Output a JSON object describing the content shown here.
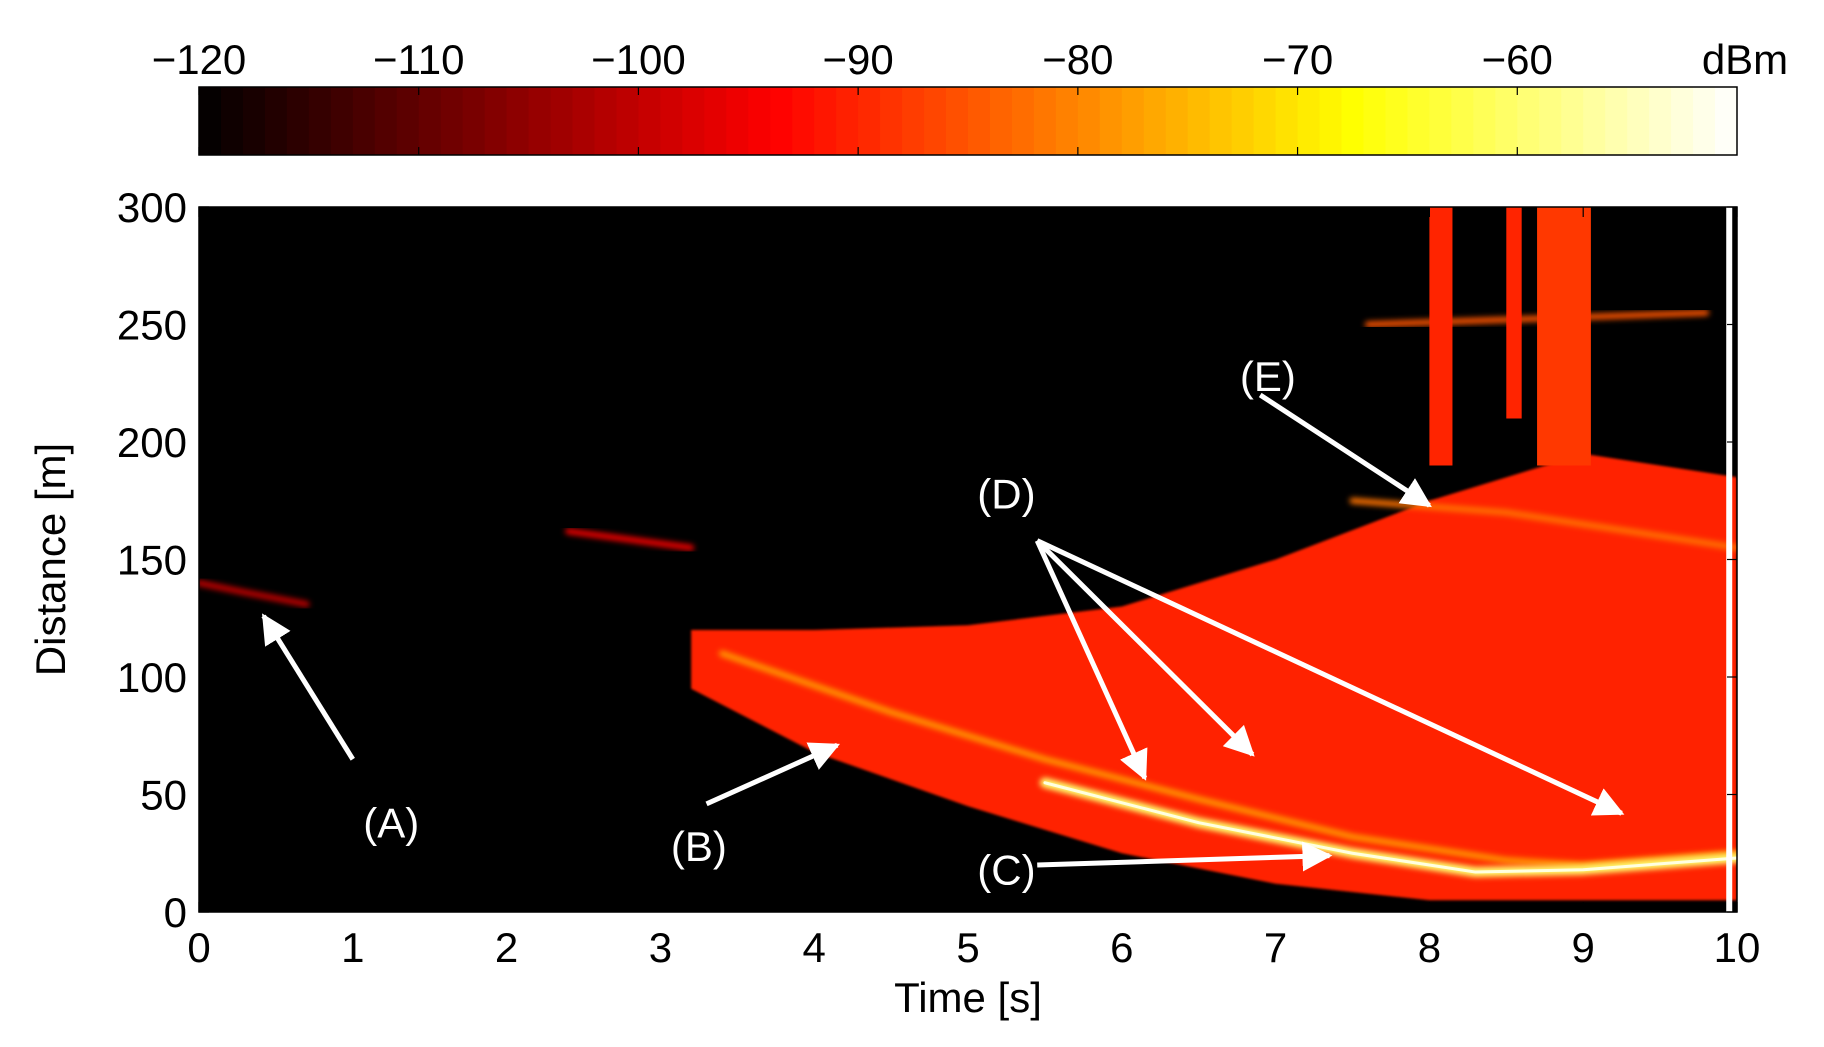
{
  "chart_data": {
    "type": "heatmap",
    "title": "",
    "xlabel": "Time [s]",
    "ylabel": "Distance [m]",
    "xlim": [
      0,
      10
    ],
    "ylim": [
      0,
      300
    ],
    "xticks": [
      "0",
      "1",
      "2",
      "3",
      "4",
      "5",
      "6",
      "7",
      "8",
      "9",
      "10"
    ],
    "yticks": [
      "0",
      "50",
      "100",
      "150",
      "200",
      "250",
      "300"
    ],
    "colorbar": {
      "unit": "dBm",
      "range": [
        -120,
        -50
      ],
      "ticks": [
        "−120",
        "−110",
        "−100",
        "−90",
        "−80",
        "−70",
        "−60"
      ],
      "tick_values": [
        -120,
        -110,
        -100,
        -90,
        -80,
        -70,
        -60
      ],
      "colormap": "hot"
    },
    "features": [
      {
        "kind": "line",
        "t": [
          0,
          0.3,
          0.7
        ],
        "d": [
          140,
          136,
          131
        ],
        "power_dbm": -100
      },
      {
        "kind": "line",
        "t": [
          2.4,
          3.2
        ],
        "d": [
          162,
          155
        ],
        "power_dbm": -95
      },
      {
        "kind": "band",
        "t": [
          3.2,
          4,
          5,
          6,
          7,
          8,
          9,
          10
        ],
        "d_low": [
          95,
          68,
          45,
          25,
          12,
          5,
          5,
          5
        ],
        "d_high": [
          120,
          120,
          122,
          130,
          150,
          175,
          195,
          185
        ],
        "power_dbm": -90
      },
      {
        "kind": "line",
        "t": [
          3.4,
          4.5,
          5.5,
          6.5,
          7.5,
          8.5,
          9,
          10
        ],
        "d": [
          110,
          85,
          65,
          48,
          32,
          22,
          20,
          25
        ],
        "power_dbm": -78
      },
      {
        "kind": "line",
        "t": [
          5.5,
          6.5,
          7.5,
          8.3,
          9,
          10
        ],
        "d": [
          55,
          38,
          25,
          17,
          18,
          23
        ],
        "power_dbm": -60
      },
      {
        "kind": "line",
        "t": [
          7.5,
          8.5,
          9.5,
          10
        ],
        "d": [
          175,
          170,
          160,
          155
        ],
        "power_dbm": -82
      },
      {
        "kind": "line",
        "t": [
          7.6,
          9.8
        ],
        "d": [
          250,
          255
        ],
        "power_dbm": -85
      },
      {
        "kind": "column",
        "t": [
          8.0,
          8.15
        ],
        "d": [
          190,
          300
        ],
        "power_dbm": -90
      },
      {
        "kind": "column",
        "t": [
          8.5,
          8.6
        ],
        "d": [
          210,
          300
        ],
        "power_dbm": -90
      },
      {
        "kind": "column",
        "t": [
          8.7,
          9.05
        ],
        "d": [
          190,
          300
        ],
        "power_dbm": -88
      }
    ],
    "annotations": [
      {
        "label": "(A)",
        "text_t": 1.25,
        "text_d": 38,
        "target_t": 0.42,
        "target_d": 126,
        "tail_t": 1.0,
        "tail_d": 65
      },
      {
        "label": "(B)",
        "text_t": 3.25,
        "text_d": 28,
        "target_t": 4.15,
        "target_d": 71,
        "tail_t": 3.3,
        "tail_d": 46
      },
      {
        "label": "(C)",
        "text_t": 5.25,
        "text_d": 18,
        "target_t": 7.35,
        "target_d": 24,
        "tail_t": 5.45,
        "tail_d": 20
      },
      {
        "label": "(D)",
        "text_t": 5.25,
        "text_d": 178,
        "targets": [
          [
            6.15,
            57
          ],
          [
            6.85,
            67
          ],
          [
            9.25,
            42
          ]
        ],
        "tail_t": 5.45,
        "tail_d": 158
      },
      {
        "label": "(E)",
        "text_t": 6.95,
        "text_d": 228,
        "target_t": 8.0,
        "target_d": 173,
        "tail_t": 6.9,
        "tail_d": 220
      }
    ]
  }
}
